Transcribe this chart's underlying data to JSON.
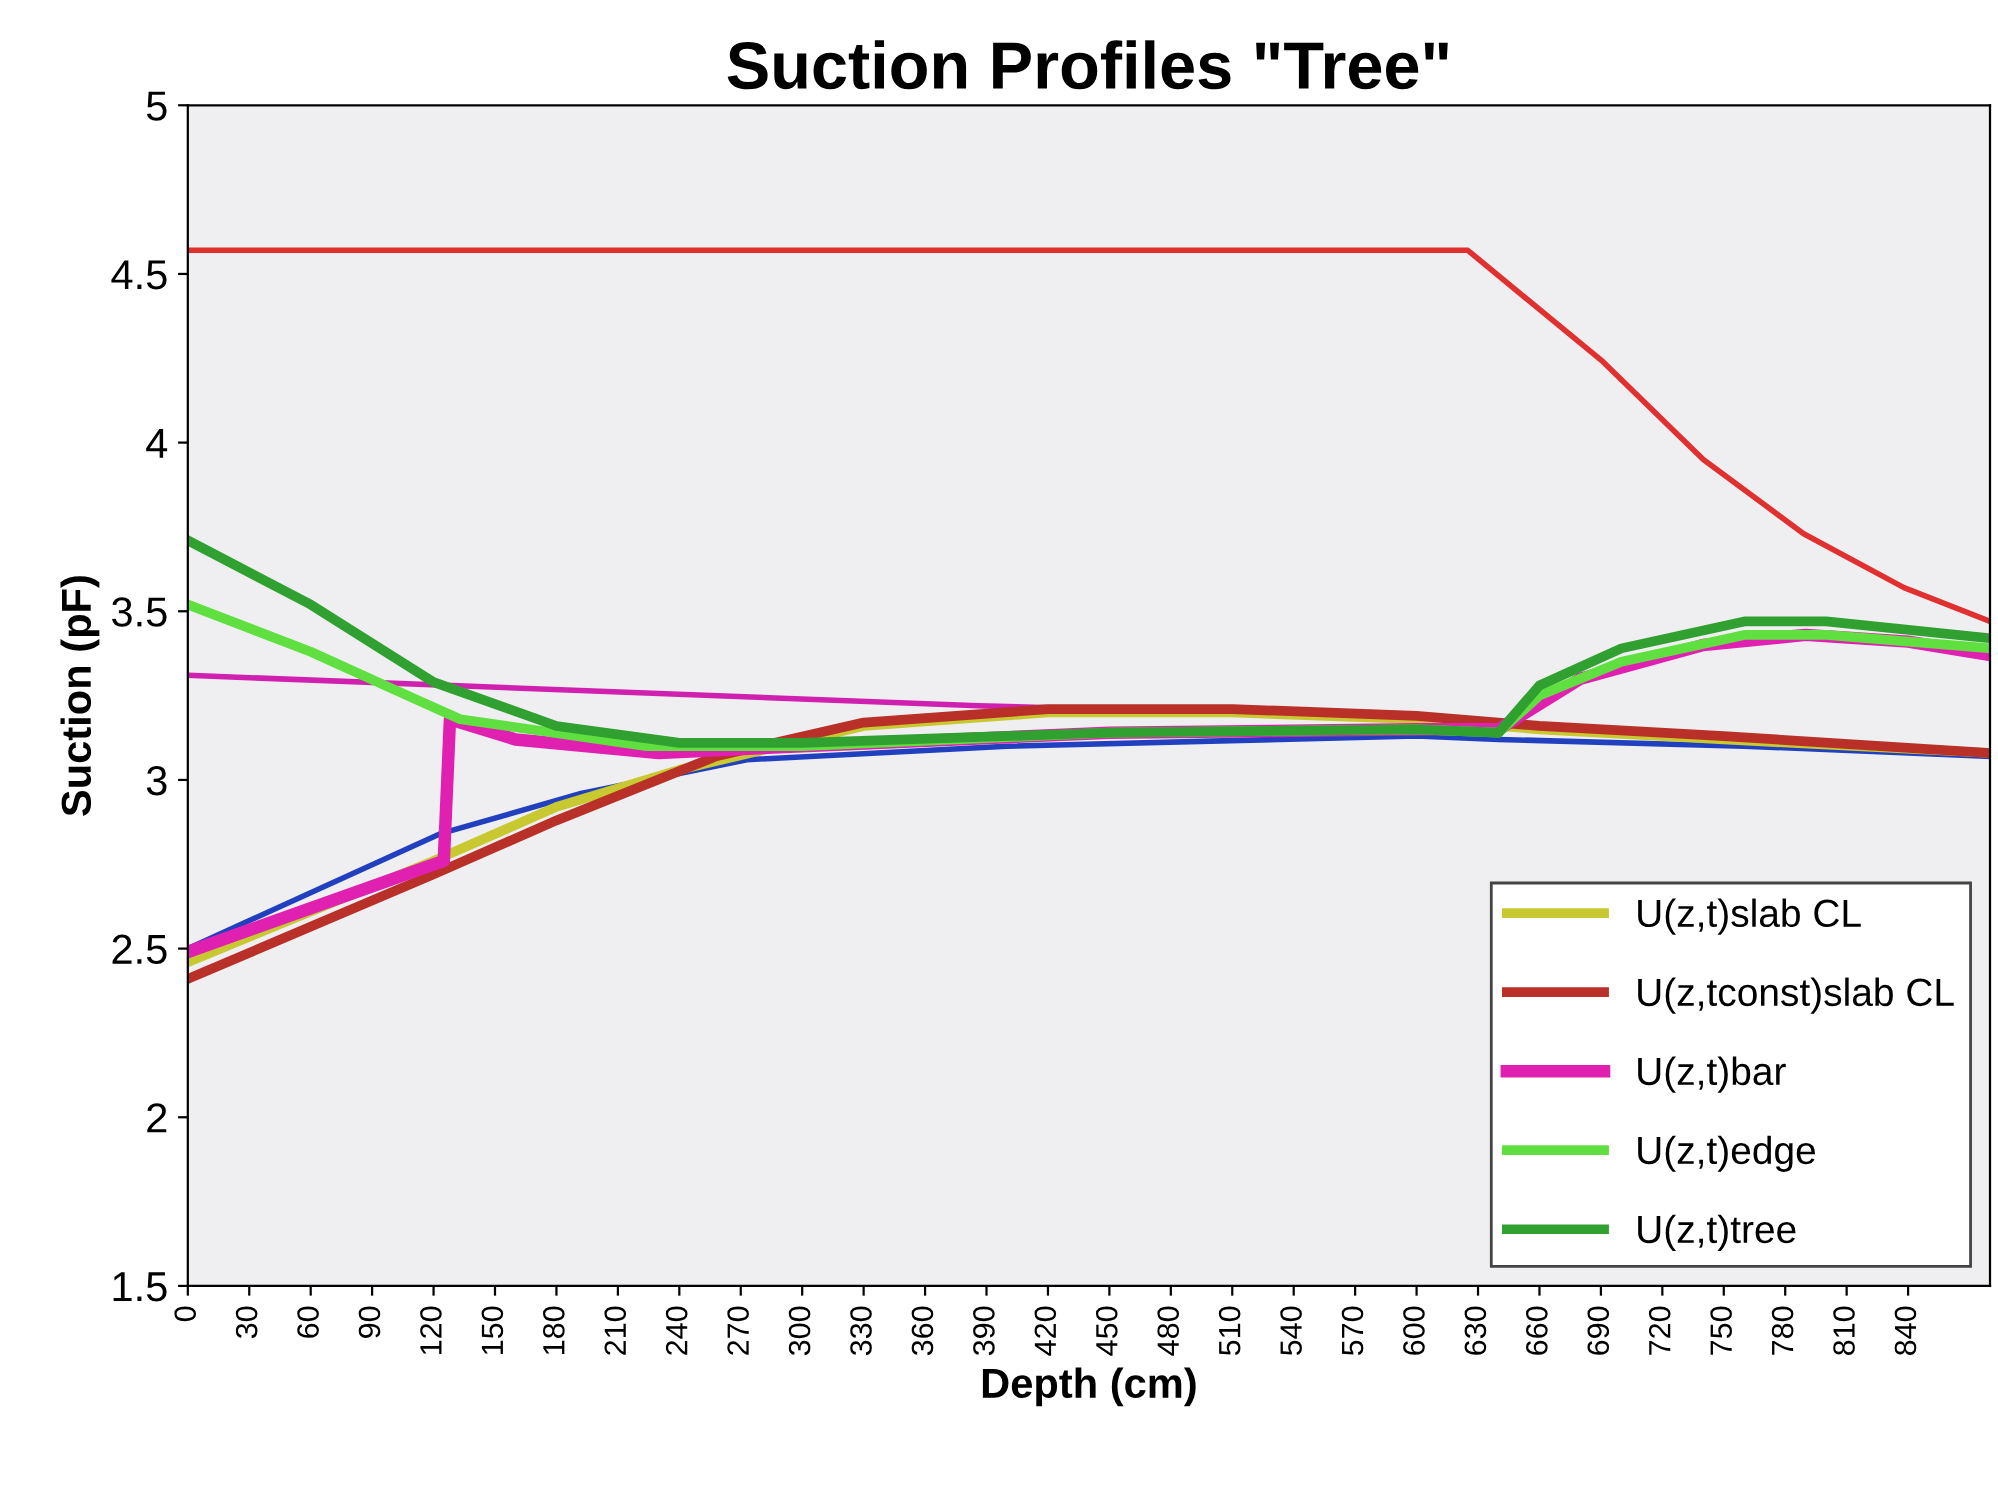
{
  "chart_data": {
    "type": "line",
    "title": "Suction Profiles \"Tree\"",
    "xlabel": "Depth (cm)",
    "ylabel": "Suction (pF)",
    "xlim": [
      0,
      880
    ],
    "xticks": [
      0,
      30,
      60,
      90,
      120,
      150,
      180,
      210,
      240,
      270,
      300,
      330,
      360,
      390,
      420,
      450,
      480,
      510,
      540,
      570,
      600,
      630,
      660,
      690,
      720,
      750,
      780,
      810,
      840
    ],
    "ylim": [
      1.5,
      5
    ],
    "yticks": [
      1.5,
      2,
      2.5,
      3,
      3.5,
      4,
      4.5,
      5
    ],
    "grid": false,
    "legend": "bottom right",
    "marker": "none",
    "line_style": "solid",
    "series": [
      {
        "color": "#e03030",
        "x": [
          0,
          625,
          691,
          740,
          789,
          838,
          880
        ],
        "values": [
          4.57,
          4.57,
          4.24,
          3.95,
          3.73,
          3.57,
          3.47
        ]
      },
      {
        "color": "#d020b0",
        "x": [
          0,
          386,
          560
        ],
        "values": [
          3.31,
          3.22,
          3.19
        ]
      },
      {
        "color": "#2040c0",
        "x": [
          0,
          123,
          192,
          273,
          400,
          600,
          640,
          760,
          880
        ],
        "values": [
          2.5,
          2.84,
          2.96,
          3.06,
          3.1,
          3.13,
          3.12,
          3.1,
          3.07
        ]
      },
      {
        "name": "U(z,t)slab CL",
        "color": "#c8c830",
        "x": [
          0,
          120,
          180,
          240,
          330,
          420,
          510,
          600,
          660,
          750,
          880
        ],
        "values": [
          2.46,
          2.76,
          2.92,
          3.03,
          3.16,
          3.2,
          3.2,
          3.18,
          3.15,
          3.12,
          3.08
        ]
      },
      {
        "name": "U(z,tconst)slab CL",
        "color": "#b83028",
        "x": [
          0,
          120,
          180,
          258,
          330,
          420,
          510,
          600,
          660,
          750,
          880
        ],
        "values": [
          2.41,
          2.72,
          2.88,
          3.07,
          3.17,
          3.21,
          3.21,
          3.19,
          3.16,
          3.13,
          3.08
        ]
      },
      {
        "name": "U(z,t)bar",
        "color": "#e020b0",
        "x": [
          0,
          125,
          128,
          160,
          230,
          300,
          450,
          600,
          640,
          680,
          740,
          790,
          840,
          880
        ],
        "values": [
          2.49,
          2.76,
          3.18,
          3.12,
          3.08,
          3.1,
          3.14,
          3.15,
          3.15,
          3.3,
          3.4,
          3.43,
          3.41,
          3.37
        ]
      },
      {
        "name": "U(z,t)edge",
        "color": "#60e040",
        "x": [
          0,
          60,
          100,
          133,
          224,
          300,
          450,
          600,
          640,
          660,
          700,
          760,
          800,
          880
        ],
        "values": [
          3.52,
          3.38,
          3.27,
          3.18,
          3.1,
          3.1,
          3.14,
          3.15,
          3.14,
          3.25,
          3.35,
          3.43,
          3.43,
          3.39
        ]
      },
      {
        "name": "U(z,t)tree",
        "color": "#30a030",
        "x": [
          0,
          60,
          120,
          180,
          240,
          300,
          450,
          600,
          640,
          660,
          700,
          760,
          800,
          880
        ],
        "values": [
          3.71,
          3.52,
          3.29,
          3.16,
          3.11,
          3.11,
          3.14,
          3.15,
          3.14,
          3.28,
          3.39,
          3.47,
          3.47,
          3.42
        ]
      }
    ]
  }
}
